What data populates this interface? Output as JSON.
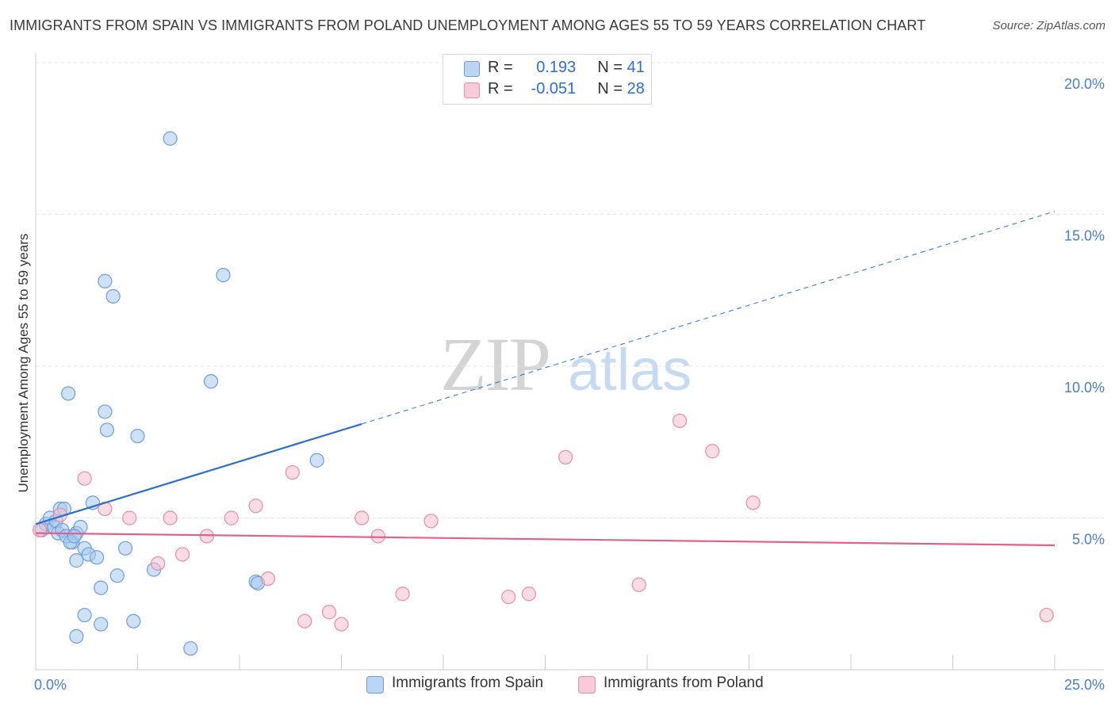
{
  "chart_data": {
    "type": "scatter",
    "title": "IMMIGRANTS FROM SPAIN VS IMMIGRANTS FROM POLAND UNEMPLOYMENT AMONG AGES 55 TO 59 YEARS CORRELATION CHART",
    "source": "Source: ZipAtlas.com",
    "xlabel": "",
    "ylabel": "Unemployment Among Ages 55 to 59 years",
    "xlim": [
      0,
      25
    ],
    "ylim": [
      0,
      20
    ],
    "x_tick_labels": [
      "0.0%",
      "25.0%"
    ],
    "y_ticks": [
      5,
      10,
      15,
      20
    ],
    "y_tick_labels": [
      "5.0%",
      "10.0%",
      "15.0%",
      "20.0%"
    ],
    "grid": true,
    "watermark": "ZIPatlas",
    "legend": [
      {
        "r_label": "R =",
        "r_value": "0.193",
        "n_label": "N =",
        "n_value": "41"
      },
      {
        "r_label": "R =",
        "r_value": "-0.051",
        "n_label": "N =",
        "n_value": "28"
      }
    ],
    "series": [
      {
        "name": "Immigrants from Spain",
        "color": "#a8c8f0",
        "stroke": "#6c9ed8",
        "line_color": "#2c6fd0",
        "trend": {
          "x0": 0.0,
          "y0": 4.8,
          "x1": 25.0,
          "y1": 15.1,
          "solid_until_x": 8.0
        },
        "points": [
          [
            0.15,
            4.6
          ],
          [
            0.25,
            4.8
          ],
          [
            0.35,
            5.0
          ],
          [
            0.45,
            4.7
          ],
          [
            0.5,
            4.9
          ],
          [
            0.6,
            5.3
          ],
          [
            0.7,
            5.3
          ],
          [
            0.9,
            4.2
          ],
          [
            1.0,
            4.5
          ],
          [
            1.1,
            4.7
          ],
          [
            0.55,
            4.5
          ],
          [
            0.65,
            4.6
          ],
          [
            0.75,
            4.4
          ],
          [
            0.85,
            4.2
          ],
          [
            0.95,
            4.4
          ],
          [
            1.2,
            4.0
          ],
          [
            1.3,
            3.8
          ],
          [
            1.4,
            5.5
          ],
          [
            1.5,
            3.7
          ],
          [
            1.0,
            3.6
          ],
          [
            1.6,
            2.7
          ],
          [
            1.2,
            1.8
          ],
          [
            1.0,
            1.1
          ],
          [
            1.6,
            1.5
          ],
          [
            0.8,
            9.1
          ],
          [
            1.7,
            8.5
          ],
          [
            1.75,
            7.9
          ],
          [
            2.0,
            3.1
          ],
          [
            2.2,
            4.0
          ],
          [
            2.4,
            1.6
          ],
          [
            2.5,
            7.7
          ],
          [
            1.7,
            12.8
          ],
          [
            1.9,
            12.3
          ],
          [
            3.3,
            17.5
          ],
          [
            2.9,
            3.3
          ],
          [
            3.8,
            0.7
          ],
          [
            4.3,
            9.5
          ],
          [
            4.6,
            13.0
          ],
          [
            5.4,
            2.9
          ],
          [
            5.45,
            2.85
          ],
          [
            6.9,
            6.9
          ]
        ]
      },
      {
        "name": "Immigrants from Poland",
        "color": "#f6bfd0",
        "stroke": "#e88aa8",
        "line_color": "#e06090",
        "trend": {
          "x0": 0.0,
          "y0": 4.5,
          "x1": 25.0,
          "y1": 4.1,
          "solid_until_x": 25.0
        },
        "points": [
          [
            0.1,
            4.6
          ],
          [
            0.6,
            5.1
          ],
          [
            1.2,
            6.3
          ],
          [
            1.7,
            5.3
          ],
          [
            2.3,
            5.0
          ],
          [
            3.0,
            3.5
          ],
          [
            3.3,
            5.0
          ],
          [
            3.6,
            3.8
          ],
          [
            4.2,
            4.4
          ],
          [
            4.8,
            5.0
          ],
          [
            5.4,
            5.4
          ],
          [
            5.7,
            3.0
          ],
          [
            6.3,
            6.5
          ],
          [
            6.6,
            1.6
          ],
          [
            7.2,
            1.9
          ],
          [
            7.5,
            1.5
          ],
          [
            8.0,
            5.0
          ],
          [
            8.4,
            4.4
          ],
          [
            9.0,
            2.5
          ],
          [
            9.7,
            4.9
          ],
          [
            11.6,
            2.4
          ],
          [
            12.1,
            2.5
          ],
          [
            13.0,
            7.0
          ],
          [
            14.8,
            2.8
          ],
          [
            15.8,
            8.2
          ],
          [
            16.6,
            7.2
          ],
          [
            17.6,
            5.5
          ],
          [
            24.8,
            1.8
          ]
        ]
      }
    ]
  }
}
